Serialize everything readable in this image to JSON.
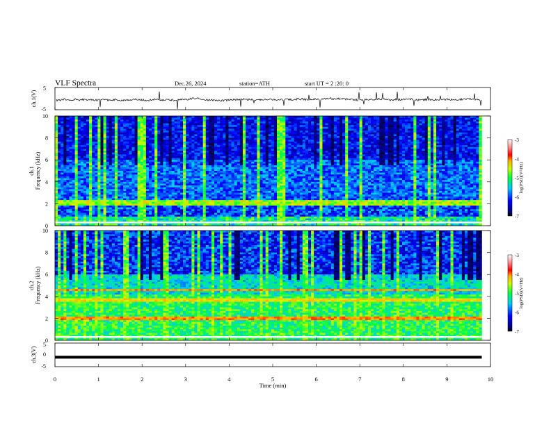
{
  "header": {
    "title": "VLF  Spectra",
    "date": "Dec.26, 2024",
    "station": "station=ATH",
    "start": "start  UT  =   2  :20: 0"
  },
  "chart_data": [
    {
      "type": "line",
      "panel": "ch1-waveform",
      "ylabel": "ch.1(V)",
      "ylim": [
        -5,
        5
      ],
      "yticks": [
        "5",
        "-5"
      ],
      "xlim": [
        0,
        10
      ],
      "note_values": "noisy waveform centred near -0.5 V with spikes",
      "baseline": -0.5
    },
    {
      "type": "heatmap",
      "panel": "ch1-spectrogram",
      "ylabel_line1": "ch.1",
      "ylabel_line2": "Frequency  (kHz)",
      "ylim": [
        0,
        10
      ],
      "yticks": [
        "0",
        "2",
        "4",
        "6",
        "8",
        "10"
      ],
      "xlim": [
        0,
        10
      ],
      "data_end_min": 9.8,
      "colorbar": {
        "label": "log(PSD)(V²/Hz)",
        "ticks": [
          "-3",
          "-4",
          "-5",
          "-6",
          "-7"
        ],
        "range": [
          -7,
          -3
        ]
      }
    },
    {
      "type": "heatmap",
      "panel": "ch2-spectrogram",
      "ylabel_line1": "ch.2",
      "ylabel_line2": "Frequency  (kHz)",
      "ylim": [
        0,
        10
      ],
      "yticks": [
        "0",
        "2",
        "4",
        "6",
        "8",
        "10"
      ],
      "xlim": [
        0,
        10
      ],
      "data_end_min": 9.8,
      "colorbar": {
        "label": "log(PSD)(V²/Hz)",
        "ticks": [
          "-3",
          "-4",
          "-5",
          "-6",
          "-7"
        ],
        "range": [
          -7,
          -3
        ]
      }
    },
    {
      "type": "line",
      "panel": "ch3-waveform",
      "ylabel": "ch.3(V)",
      "ylim": [
        -5,
        5
      ],
      "yticks": [
        "5",
        "0",
        "-5"
      ],
      "xlim": [
        0,
        10
      ],
      "baseline": -1.0
    }
  ],
  "xaxis": {
    "label": "Time  (min)",
    "ticks": [
      "0",
      "1",
      "2",
      "3",
      "4",
      "5",
      "6",
      "7",
      "8",
      "9",
      "10"
    ]
  },
  "colors": {
    "line": "#000000",
    "axis": "#000000"
  }
}
